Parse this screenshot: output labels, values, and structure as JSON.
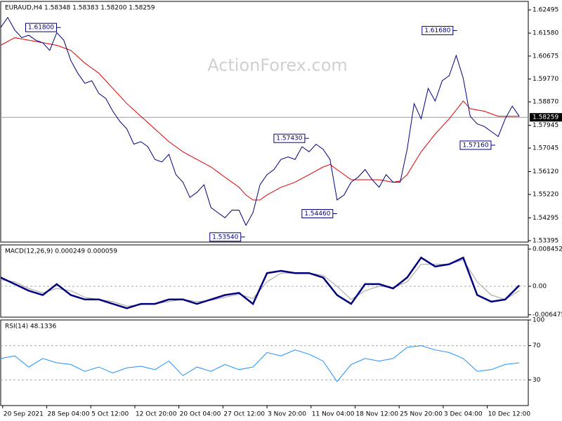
{
  "chart_data": [
    {
      "type": "line",
      "title": "EURAUD,H4 1.58348 1.58383 1.58200 1.58259",
      "watermark": "ActionForex.com",
      "x": [
        0,
        7,
        14,
        21,
        28,
        35,
        42,
        49,
        56,
        63,
        70,
        77,
        84,
        91,
        98,
        105,
        112,
        119,
        126,
        133,
        140,
        147,
        154,
        161,
        168,
        175,
        182,
        189,
        196,
        203,
        210,
        217,
        224,
        231,
        238,
        245,
        252,
        259,
        266,
        273,
        280,
        287,
        294,
        301,
        308,
        315,
        322,
        329,
        336,
        343,
        350,
        357,
        364,
        371,
        378,
        385,
        392,
        399,
        406,
        413,
        420,
        427,
        434,
        441,
        448,
        455,
        462,
        469,
        476,
        483,
        490,
        497,
        504,
        511,
        518
      ],
      "series": [
        {
          "color": "#000080",
          "values": [
            1.618,
            1.622,
            1.617,
            1.614,
            1.615,
            1.613,
            1.612,
            1.609,
            1.616,
            1.613,
            1.605,
            1.6,
            1.596,
            1.597,
            1.592,
            1.59,
            1.585,
            1.581,
            1.578,
            1.572,
            1.573,
            1.571,
            1.566,
            1.565,
            1.568,
            1.56,
            1.557,
            1.551,
            1.553,
            1.556,
            1.547,
            1.545,
            1.543,
            1.546,
            1.546,
            1.54,
            1.545,
            1.556,
            1.56,
            1.562,
            1.566,
            1.567,
            1.566,
            1.571,
            1.569,
            1.572,
            1.57,
            1.566,
            1.55,
            1.552,
            1.557,
            1.559,
            1.562,
            1.558,
            1.555,
            1.56,
            1.557,
            1.557,
            1.57,
            1.588,
            1.582,
            1.594,
            1.589,
            1.597,
            1.599,
            1.607,
            1.598,
            1.583,
            1.58,
            1.579,
            1.577,
            1.575,
            1.582,
            1.587,
            1.583
          ]
        },
        {
          "color": "#e00000",
          "values": [
            1.611,
            1.6125,
            1.614,
            1.6135,
            1.613,
            1.6125,
            1.612,
            1.6115,
            1.611,
            1.61,
            1.609,
            1.6065,
            1.604,
            1.602,
            1.6,
            1.597,
            1.594,
            1.591,
            1.588,
            1.5855,
            1.583,
            1.5805,
            1.578,
            1.5755,
            1.573,
            1.571,
            1.569,
            1.5675,
            1.566,
            1.5645,
            1.563,
            1.561,
            1.559,
            1.557,
            1.555,
            1.552,
            1.55,
            1.55,
            1.552,
            1.5535,
            1.555,
            1.556,
            1.557,
            1.5585,
            1.56,
            1.5615,
            1.563,
            1.564,
            1.562,
            1.56,
            1.558,
            1.558,
            1.558,
            1.558,
            1.558,
            1.5575,
            1.557,
            1.5575,
            1.56,
            1.5645,
            1.569,
            1.5725,
            1.576,
            1.579,
            1.582,
            1.5855,
            1.589,
            1.586,
            1.5855,
            1.585,
            1.584,
            1.583,
            1.583,
            1.583,
            1.583
          ]
        }
      ],
      "current": 1.58259,
      "annotations": [
        {
          "label": "1.61800",
          "x": 60,
          "y": 1.618
        },
        {
          "label": "1.57430",
          "x": 308,
          "y": 1.5743
        },
        {
          "label": "1.54460",
          "x": 336,
          "y": 1.5446
        },
        {
          "label": "1.53540",
          "x": 244,
          "y": 1.5354
        },
        {
          "label": "1.61680",
          "x": 456,
          "y": 1.6168
        },
        {
          "label": "1.57160",
          "x": 494,
          "y": 1.5716
        }
      ],
      "xlim": [
        0,
        527
      ],
      "ylim": [
        1.5334,
        1.6283
      ],
      "yticks": [
        1.62495,
        {
          "value": 1.6158,
          "label": "1.61580"
        },
        1.60675,
        {
          "value": 1.5977,
          "label": "1.59770"
        },
        {
          "value": 1.5887,
          "label": "1.58870"
        },
        1.57945,
        1.57045,
        {
          "value": 1.5612,
          "label": "1.56120"
        },
        {
          "value": 1.5522,
          "label": "1.55220"
        },
        1.54295,
        1.53395
      ]
    },
    {
      "type": "line",
      "title": "MACD(12,26,9) 0.000249 0.000059",
      "x": [
        0,
        14,
        28,
        42,
        56,
        70,
        84,
        98,
        112,
        126,
        140,
        154,
        168,
        182,
        196,
        210,
        224,
        238,
        252,
        266,
        280,
        294,
        308,
        322,
        336,
        350,
        364,
        378,
        392,
        406,
        420,
        434,
        448,
        462,
        476,
        490,
        504,
        518
      ],
      "series": [
        {
          "color": "#000080",
          "values": [
            0.002,
            0.0005,
            -0.001,
            -0.002,
            0.0005,
            -0.002,
            -0.003,
            -0.003,
            -0.004,
            -0.005,
            -0.004,
            -0.004,
            -0.003,
            -0.003,
            -0.004,
            -0.003,
            -0.002,
            -0.0015,
            -0.004,
            0.003,
            0.0035,
            0.003,
            0.003,
            0.002,
            -0.002,
            -0.004,
            0.0005,
            0.0005,
            -0.0005,
            0.002,
            0.0065,
            0.0045,
            0.005,
            0.0065,
            -0.002,
            -0.0035,
            -0.003,
            0.0002
          ]
        },
        {
          "color": "#a0a0a0",
          "values": [
            0.0015,
            0.001,
            -0.0005,
            -0.0015,
            -0.0005,
            -0.001,
            -0.0025,
            -0.003,
            -0.0035,
            -0.0045,
            -0.0042,
            -0.004,
            -0.0035,
            -0.003,
            -0.0035,
            -0.0032,
            -0.0025,
            -0.0018,
            -0.0028,
            0.001,
            0.003,
            0.003,
            0.003,
            0.0025,
            0.0,
            -0.003,
            -0.001,
            0.0,
            -0.0003,
            0.001,
            0.005,
            0.005,
            0.005,
            0.006,
            0.001,
            -0.002,
            -0.003,
            -0.001
          ]
        }
      ],
      "xlim": [
        0,
        527
      ],
      "ylim": [
        -0.00702,
        0.00941
      ],
      "yticks": [
        0.008452,
        {
          "value": 0,
          "label": "0.00"
        },
        -0.006475
      ]
    },
    {
      "type": "line",
      "title": "RSI(14) 48.1336",
      "x": [
        0,
        14,
        28,
        42,
        56,
        70,
        84,
        98,
        112,
        126,
        140,
        154,
        168,
        182,
        196,
        210,
        224,
        238,
        252,
        266,
        280,
        294,
        308,
        322,
        336,
        350,
        364,
        378,
        392,
        406,
        420,
        434,
        448,
        462,
        476,
        490,
        504,
        518
      ],
      "series": [
        {
          "color": "#1e90ff",
          "values": [
            55,
            58,
            45,
            55,
            50,
            48,
            40,
            45,
            38,
            44,
            46,
            42,
            52,
            35,
            45,
            40,
            48,
            42,
            45,
            62,
            58,
            65,
            60,
            52,
            28,
            48,
            55,
            52,
            55,
            68,
            70,
            65,
            62,
            55,
            40,
            42,
            48,
            50
          ]
        }
      ],
      "xlim": [
        0,
        527
      ],
      "ylim": [
        0,
        100
      ],
      "yticks": [
        30,
        70,
        100
      ],
      "grid": [
        30,
        70
      ],
      "xticks": [
        {
          "value": 2,
          "label": "20 Sep 2021"
        },
        {
          "value": 46,
          "label": "28 Sep 04:00"
        },
        {
          "value": 90,
          "label": "5 Oct 12:00"
        },
        {
          "value": 134,
          "label": "12 Oct 20:00"
        },
        {
          "value": 178,
          "label": "20 Oct 04:00"
        },
        {
          "value": 222,
          "label": "27 Oct 12:00"
        },
        {
          "value": 266,
          "label": "3 Nov 20:00"
        },
        {
          "value": 310,
          "label": "11 Nov 04:00"
        },
        {
          "value": 354,
          "label": "18 Nov 12:00"
        },
        {
          "value": 398,
          "label": "25 Nov 20:00"
        },
        {
          "value": 442,
          "label": "3 Dec 04:00"
        },
        {
          "value": 486,
          "label": "10 Dec 12:00"
        }
      ]
    }
  ]
}
